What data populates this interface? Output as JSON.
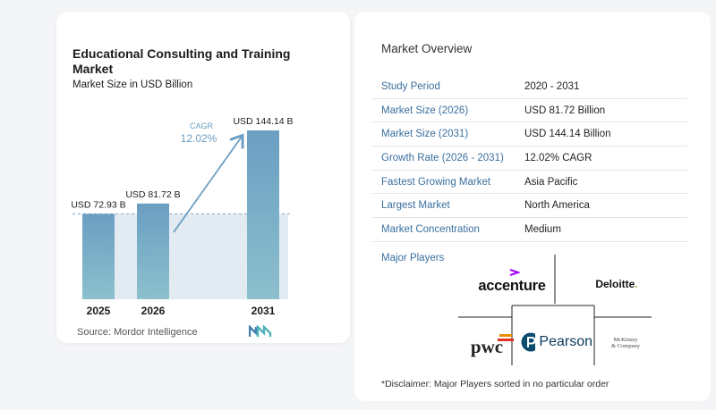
{
  "chart_data": {
    "type": "bar",
    "title": "Educational Consulting and Training Market",
    "subtitle": "Market Size in USD Billion",
    "categories": [
      "2025",
      "2026",
      "2031"
    ],
    "values": [
      72.93,
      81.72,
      144.14
    ],
    "value_labels": [
      "USD 72.93 B",
      "USD 81.72 B",
      "USD 144.14 B"
    ],
    "cagr_label": "CAGR",
    "cagr_value": "12.02%",
    "ylim": [
      0,
      144.14
    ],
    "grid": false,
    "colors": {
      "bar_top": "#6b9ec2",
      "bar_bottom": "#8cc0cd",
      "shade": "#e3ebf2",
      "arrow": "#6b9ec2"
    }
  },
  "source": "Source:  Mordor Intelligence",
  "overview": {
    "title": "Market Overview",
    "rows": [
      {
        "key": "Study Period",
        "value": "2020 - 2031"
      },
      {
        "key": "Market Size (2026)",
        "value": "USD 81.72 Billion"
      },
      {
        "key": "Market Size (2031)",
        "value": "USD 144.14 Billion"
      },
      {
        "key": "Growth Rate (2026 - 2031)",
        "value": "12.02% CAGR"
      },
      {
        "key": "Fastest Growing Market",
        "value": "Asia Pacific"
      },
      {
        "key": "Largest Market",
        "value": "North America"
      },
      {
        "key": "Market Concentration",
        "value": "Medium"
      }
    ],
    "players_title": "Major Players",
    "players": {
      "accenture": "accenture",
      "deloitte": "Deloitte",
      "pwc": "pwc",
      "pearson": "Pearson",
      "mckinsey_line1": "McKinsey",
      "mckinsey_line2": "& Company"
    },
    "disclaimer": "*Disclaimer: Major Players sorted in no particular order"
  },
  "accent_color": "#3a6f9e"
}
